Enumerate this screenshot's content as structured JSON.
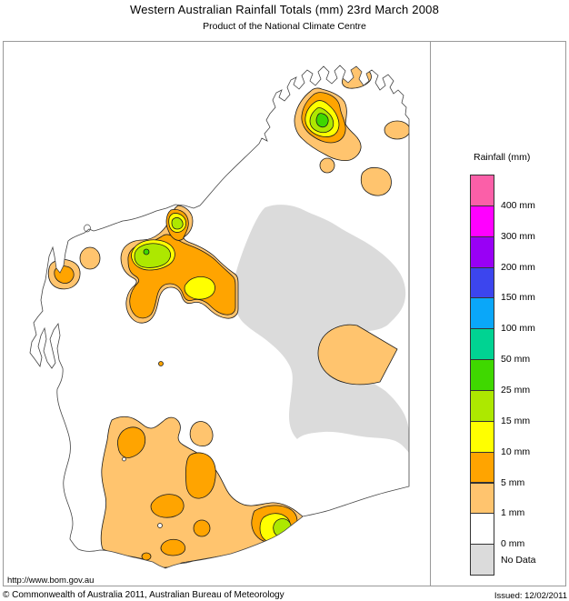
{
  "header": {
    "title": "Western Australian Rainfall Totals (mm) 23rd March 2008",
    "subtitle": "Product of the National Climate Centre"
  },
  "legend": {
    "title": "Rainfall (mm)",
    "items": [
      {
        "label": "400 mm",
        "color": "#FB5FA8"
      },
      {
        "label": "300 mm",
        "color": "#FF00FF"
      },
      {
        "label": "200 mm",
        "color": "#9900F5"
      },
      {
        "label": "150 mm",
        "color": "#3C45EE"
      },
      {
        "label": "100 mm",
        "color": "#0AA7F9"
      },
      {
        "label": "50 mm",
        "color": "#00D392"
      },
      {
        "label": "25 mm",
        "color": "#3FD800"
      },
      {
        "label": "15 mm",
        "color": "#ADE800"
      },
      {
        "label": "10 mm",
        "color": "#FFFF00"
      },
      {
        "label": "5 mm",
        "color": "#FFA400"
      },
      {
        "label": "1 mm",
        "color": "#FFC46E"
      },
      {
        "label": "0 mm",
        "color": "#FFFFFF"
      },
      {
        "label": "No Data",
        "color": "#DBDBDB"
      }
    ]
  },
  "map": {
    "colors": {
      "rain_25": "#3FD800",
      "rain_15": "#ADE800",
      "rain_10": "#FFFF00",
      "rain_5": "#FFA400",
      "rain_1": "#FFC46E",
      "rain_0": "#FFFFFF",
      "no_data": "#DBDBDB",
      "land": "#FFFFFF"
    },
    "regions": [
      {
        "name": "kimberley-northwest",
        "max_level": "25 mm"
      },
      {
        "name": "kalumburu-coast",
        "max_level": "1 mm"
      },
      {
        "name": "nt-border-spot",
        "max_level": "1 mm"
      },
      {
        "name": "pilbara-inland",
        "max_level": "25 mm"
      },
      {
        "name": "exmouth-coast",
        "max_level": "5 mm"
      },
      {
        "name": "central-interior",
        "level": "No Data"
      },
      {
        "name": "interior-spot",
        "max_level": "1 mm"
      },
      {
        "name": "southwest-goldfields",
        "max_level": "5 mm"
      },
      {
        "name": "esperance-coast",
        "max_level": "15 mm"
      }
    ]
  },
  "footer": {
    "url": "http://www.bom.gov.au",
    "copyright": "© Commonwealth of Australia 2011, Australian Bureau of Meteorology",
    "issued": "Issued: 12/02/2011"
  }
}
